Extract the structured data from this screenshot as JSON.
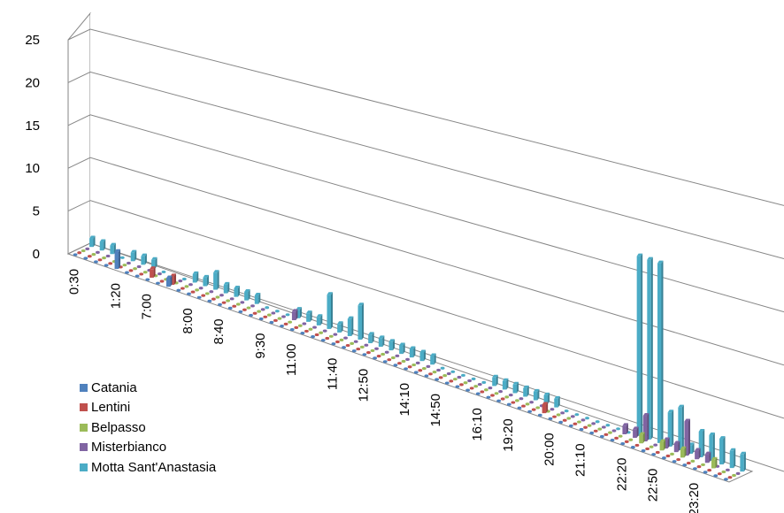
{
  "chart_data": {
    "type": "bar",
    "variant": "3d-column",
    "title": "",
    "xlabel": "",
    "ylabel": "",
    "ylim": [
      0,
      25
    ],
    "y_ticks": [
      "0",
      "5",
      "10",
      "15",
      "20",
      "25"
    ],
    "x_tick_labels": [
      "0:30",
      "1:20",
      "7:00",
      "8:00",
      "8:40",
      "9:30",
      "11:00",
      "11:40",
      "12:50",
      "14:10",
      "14:50",
      "16:10",
      "19:20",
      "20:00",
      "21:10",
      "22:20",
      "22:50",
      "23:20"
    ],
    "grid": true,
    "legend_position": "bottom-left",
    "colors": {
      "Catania": "#4f81bd",
      "Lentini": "#c0504d",
      "Belpasso": "#9bbb59",
      "Misterbianco": "#8064a2",
      "Motta Sant'Anastasia": "#4bacc6"
    },
    "series": [
      {
        "name": "Catania",
        "values": [
          0,
          0,
          0,
          0,
          2,
          0,
          0,
          0,
          0,
          1,
          0,
          0,
          0,
          0,
          0,
          0,
          0,
          0,
          0,
          0,
          0,
          0,
          0,
          0,
          0,
          0,
          0,
          0,
          0,
          0,
          0,
          0,
          0,
          0,
          0,
          0,
          0,
          0,
          0,
          0,
          0,
          0,
          0,
          0,
          0,
          0,
          0,
          0,
          0,
          0,
          0,
          0,
          0,
          0,
          0,
          0,
          0,
          0,
          0,
          0,
          0,
          0,
          0,
          0
        ]
      },
      {
        "name": "Lentini",
        "values": [
          0,
          0,
          0,
          0,
          0,
          0,
          0,
          1,
          0,
          1,
          0,
          0,
          0,
          0,
          0,
          0,
          0,
          0,
          0,
          0,
          0,
          0,
          0,
          0,
          0,
          0,
          0,
          0,
          0,
          0,
          0,
          0,
          0,
          0,
          0,
          0,
          0,
          0,
          0,
          0,
          0,
          0,
          0,
          0,
          0,
          1,
          0,
          0,
          0,
          0,
          0,
          0,
          0,
          0,
          0,
          0,
          0,
          0,
          0,
          0,
          0,
          0,
          0,
          0
        ]
      },
      {
        "name": "Belpasso",
        "values": [
          0,
          0,
          0,
          0,
          0,
          0,
          0,
          0,
          0,
          0,
          0,
          0,
          0,
          0,
          0,
          0,
          0,
          0,
          0,
          0,
          0,
          0,
          0,
          0,
          0,
          0,
          0,
          0,
          0,
          0,
          0,
          0,
          0,
          0,
          0,
          0,
          0,
          0,
          0,
          0,
          0,
          0,
          0,
          0,
          0,
          0,
          0,
          0,
          0,
          0,
          0,
          0,
          0,
          0,
          1,
          0,
          1,
          0,
          1,
          0,
          0,
          1,
          0,
          0
        ]
      },
      {
        "name": "Misterbianco",
        "values": [
          0,
          0,
          0,
          0,
          0,
          0,
          0,
          0,
          0,
          0,
          0,
          0,
          0,
          0,
          0,
          0,
          0,
          0,
          0,
          0,
          1,
          0,
          0,
          0,
          0,
          0,
          0,
          0,
          0,
          0,
          0,
          0,
          0,
          0,
          0,
          0,
          0,
          0,
          0,
          0,
          0,
          0,
          0,
          0,
          0,
          0,
          0,
          0,
          0,
          0,
          0,
          0,
          1,
          1,
          3,
          0,
          1,
          1,
          4,
          1,
          1,
          0,
          0,
          0
        ]
      },
      {
        "name": "Motta Sant'Anastasia",
        "values": [
          1,
          1,
          1,
          0,
          1,
          1,
          1,
          0,
          0,
          0,
          1,
          1,
          2,
          1,
          1,
          1,
          1,
          0,
          0,
          0,
          1,
          1,
          1,
          4,
          1,
          2,
          4,
          1,
          1,
          1,
          1,
          1,
          1,
          1,
          0,
          0,
          0,
          0,
          0,
          1,
          1,
          1,
          1,
          1,
          1,
          1,
          0,
          0,
          0,
          0,
          0,
          0,
          0,
          21,
          21,
          21,
          4,
          5,
          1,
          3,
          3,
          3,
          2,
          2
        ]
      }
    ]
  },
  "legend": {
    "items": [
      {
        "label": "Catania"
      },
      {
        "label": "Lentini"
      },
      {
        "label": "Belpasso"
      },
      {
        "label": "Misterbianco"
      },
      {
        "label": "Motta Sant'Anastasia"
      }
    ]
  }
}
